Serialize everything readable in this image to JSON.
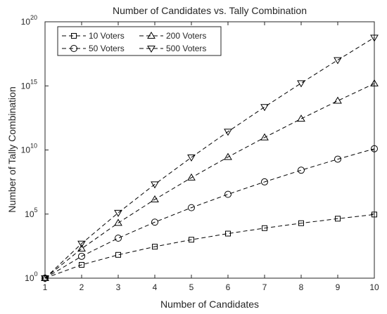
{
  "chart_data": {
    "type": "line",
    "title": "Number of Candidates vs. Tally Combination",
    "xlabel": "Number of Candidates",
    "ylabel": "Number of Tally Combination",
    "x": [
      1,
      2,
      3,
      4,
      5,
      6,
      7,
      8,
      9,
      10
    ],
    "xlim": [
      1,
      10
    ],
    "yscale": "log",
    "ylim": [
      1,
      1e+20
    ],
    "yticks": [
      1,
      100000.0,
      10000000000.0,
      1000000000000000.0,
      1e+20
    ],
    "ytick_base": "10",
    "ytick_exponents": [
      "0",
      "5",
      "10",
      "15",
      "20"
    ],
    "grid": false,
    "legend_position": "top-left",
    "line_style": "dashed",
    "line_color": "#000000",
    "series": [
      {
        "name": "10 Voters",
        "marker": "square",
        "values": [
          1,
          11,
          66,
          286,
          1001,
          3003,
          8008,
          19448,
          43758,
          92378
        ]
      },
      {
        "name": "50 Voters",
        "marker": "circle",
        "values": [
          1,
          51,
          1326,
          23426,
          316251,
          3478761,
          32468436,
          264385836,
          1916797311,
          12565671261
        ]
      },
      {
        "name": "200 Voters",
        "marker": "triangle-up",
        "values": [
          1,
          201,
          20301,
          1373701,
          69382351,
          2803100000.0,
          94152000000.0,
          2709800000000.0,
          68256000000000.0,
          1528600000000000.0
        ]
      },
      {
        "name": "500 Voters",
        "marker": "triangle-down",
        "values": [
          1,
          501,
          125751,
          21084251,
          2656600000.0,
          268310000000.0,
          22617000000000.0,
          1637700000000000.0,
          1.0395e+17,
          5.8734e+18
        ]
      }
    ]
  }
}
